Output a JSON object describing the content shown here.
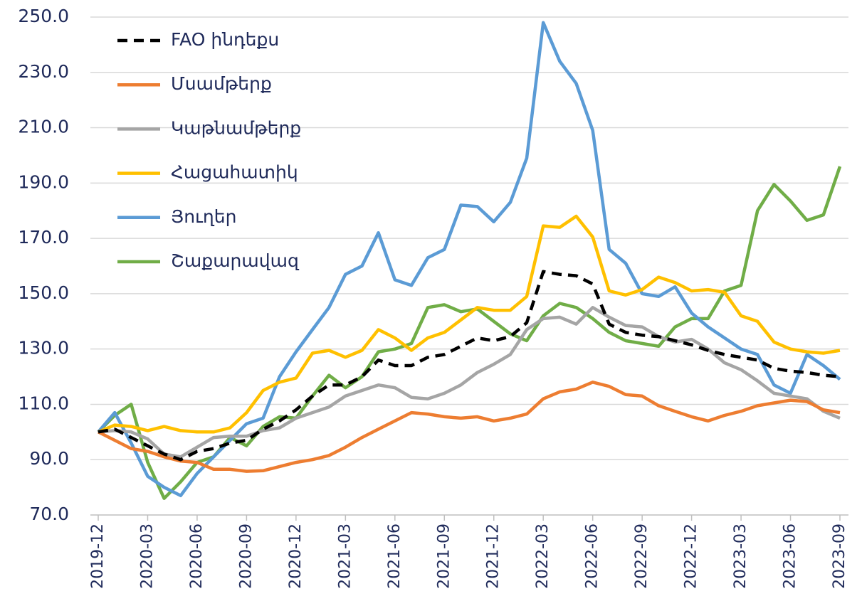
{
  "chart_data": {
    "type": "line",
    "categories": [
      "2019-12",
      null,
      null,
      "2020-03",
      null,
      null,
      "2020-06",
      null,
      null,
      "2020-09",
      null,
      null,
      "2020-12",
      null,
      null,
      "2021-03",
      null,
      null,
      "2021-06",
      null,
      null,
      "2021-09",
      null,
      null,
      "2021-12",
      null,
      null,
      "2022-03",
      null,
      null,
      "2022-06",
      null,
      null,
      "2022-09",
      null,
      null,
      "2022-12",
      null,
      null,
      "2023-03",
      null,
      null,
      "2023-06",
      null,
      null,
      "2023-09"
    ],
    "series": [
      {
        "name": "FAO ինդեքս",
        "color": "#000000",
        "dashed": true,
        "values": [
          100,
          101,
          98,
          95,
          92,
          90,
          93,
          94,
          96,
          97,
          101,
          104,
          108,
          113,
          117,
          117,
          120,
          126,
          124,
          124,
          127,
          128,
          131,
          134,
          133,
          134.5,
          139.5,
          158,
          157,
          156.5,
          153.5,
          139,
          136,
          135,
          134.5,
          133,
          131.5,
          129.5,
          128,
          127,
          126,
          123,
          122,
          121.5,
          120.5,
          120
        ]
      },
      {
        "name": "Մսամթերք",
        "color": "#ed7d31",
        "values": [
          100,
          97,
          94,
          93,
          91,
          89.5,
          89,
          86.5,
          86.5,
          85.8,
          86,
          87.5,
          89,
          90,
          91.5,
          94.5,
          98,
          101,
          104,
          107,
          106.5,
          105.5,
          105,
          105.5,
          104,
          105,
          106.5,
          112,
          114.5,
          115.5,
          118,
          116.5,
          113.5,
          113,
          109.5,
          107.5,
          105.5,
          104,
          106,
          107.5,
          109.5,
          110.5,
          111.5,
          111,
          108,
          107
        ]
      },
      {
        "name": "Կաթնամթերք",
        "color": "#a5a5a5",
        "values": [
          100,
          100.5,
          100,
          97.5,
          92,
          91,
          94.5,
          98,
          98.5,
          98.5,
          100.5,
          101.5,
          105,
          107,
          109,
          113,
          115,
          117,
          116,
          112.5,
          112,
          114,
          117,
          121.5,
          124.5,
          128,
          137,
          141,
          141.5,
          139,
          145,
          141.5,
          138.5,
          138,
          134.5,
          132.5,
          133.5,
          130,
          125,
          122.5,
          118.5,
          114,
          113,
          112,
          107.5,
          105
        ]
      },
      {
        "name": "Հացահատիկ",
        "color": "#ffc000",
        "values": [
          100,
          102.5,
          102,
          100.5,
          102,
          100.5,
          100,
          100,
          101.5,
          107,
          115,
          118,
          119.5,
          128.5,
          129.5,
          127,
          129.5,
          137,
          134,
          129.5,
          134,
          136,
          140.5,
          145,
          144,
          144,
          149,
          174.5,
          174,
          178,
          170.5,
          151,
          149.5,
          151.5,
          156,
          154,
          151,
          151.5,
          150.5,
          142,
          140,
          132.5,
          130,
          129,
          128.5,
          129.5
        ]
      },
      {
        "name": "Յուղեր",
        "color": "#5b9bd5",
        "values": [
          100,
          107,
          96,
          84,
          80,
          77,
          85,
          91,
          97,
          103,
          105,
          120,
          129,
          137,
          145,
          157,
          160,
          172,
          155,
          153,
          163,
          166,
          182,
          181.5,
          176,
          183,
          199,
          248,
          234,
          226,
          209,
          166,
          161,
          150,
          149,
          152.5,
          143,
          138,
          134,
          130,
          128,
          117,
          114,
          128,
          124,
          119
        ]
      },
      {
        "name": "Շաքարավազ",
        "color": "#70ad47",
        "values": [
          100,
          106,
          110,
          89,
          76,
          82,
          89,
          91,
          98,
          95,
          102,
          105.5,
          105,
          113,
          120.5,
          116,
          120,
          129,
          130,
          132,
          145,
          146,
          143.5,
          144.5,
          140,
          135.5,
          133,
          142,
          146.5,
          145,
          141,
          136,
          133,
          132,
          131,
          138,
          141,
          141,
          151,
          153,
          180,
          189.5,
          183.5,
          176.5,
          178.5,
          196
        ]
      }
    ],
    "ylim": [
      70,
      250
    ],
    "yticks": [
      {
        "value": 70,
        "label": "70.0"
      },
      {
        "value": 90,
        "label": "90.0"
      },
      {
        "value": 110,
        "label": "110.0"
      },
      {
        "value": 130,
        "label": "130.0"
      },
      {
        "value": 150,
        "label": "150.0"
      },
      {
        "value": 170,
        "label": "170.0"
      },
      {
        "value": 190,
        "label": "190.0"
      },
      {
        "value": 210,
        "label": "210.0"
      },
      {
        "value": 230,
        "label": "230.0"
      },
      {
        "value": 250,
        "label": "250.0"
      }
    ],
    "grid": true,
    "legend": "top-left"
  }
}
